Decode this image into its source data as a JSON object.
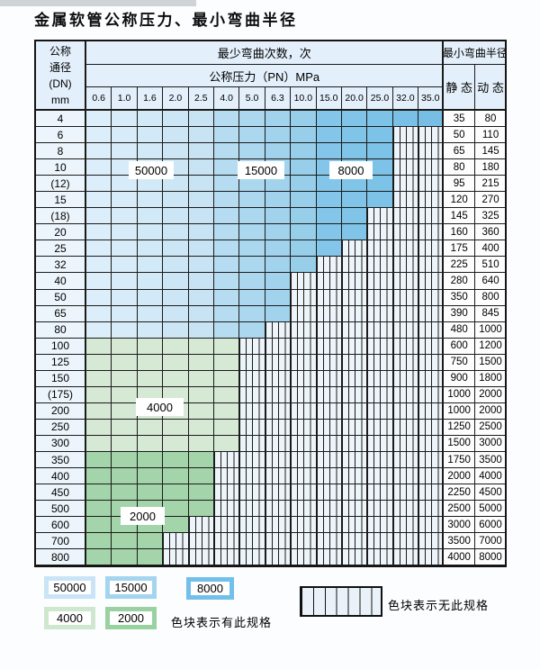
{
  "title": "金属软管公称压力、最小弯曲半径",
  "table": {
    "header": {
      "dn_label_lines": [
        "公称",
        "通径",
        "(DN)",
        "mm"
      ],
      "min_bend_cycles_title": "最少弯曲次数，次",
      "nominal_pressure_title": "公称压力（PN）MPa",
      "pressures": [
        "0.6",
        "1.0",
        "1.6",
        "2.0",
        "2.5",
        "4.0",
        "5.0",
        "6.3",
        "10.0",
        "15.0",
        "20.0",
        "25.0",
        "32.0",
        "35.0"
      ],
      "min_bend_radius_title": "最小弯曲半径",
      "static_label": "静 态",
      "dynamic_label": "动 态"
    },
    "rows": [
      {
        "dn": "4",
        "max_pn": "35.0",
        "band": "blue",
        "static": "35",
        "dynamic": "80"
      },
      {
        "dn": "6",
        "max_pn": "25.0",
        "band": "blue",
        "static": "50",
        "dynamic": "110"
      },
      {
        "dn": "8",
        "max_pn": "25.0",
        "band": "blue",
        "static": "65",
        "dynamic": "145"
      },
      {
        "dn": "10",
        "max_pn": "25.0",
        "band": "blue",
        "static": "80",
        "dynamic": "180"
      },
      {
        "dn": "(12)",
        "max_pn": "25.0",
        "band": "blue",
        "static": "95",
        "dynamic": "215"
      },
      {
        "dn": "15",
        "max_pn": "25.0",
        "band": "blue",
        "static": "120",
        "dynamic": "270"
      },
      {
        "dn": "(18)",
        "max_pn": "20.0",
        "band": "blue",
        "static": "145",
        "dynamic": "325"
      },
      {
        "dn": "20",
        "max_pn": "20.0",
        "band": "blue",
        "static": "160",
        "dynamic": "360"
      },
      {
        "dn": "25",
        "max_pn": "15.0",
        "band": "blue",
        "static": "175",
        "dynamic": "400"
      },
      {
        "dn": "32",
        "max_pn": "10.0",
        "band": "blue",
        "static": "225",
        "dynamic": "510"
      },
      {
        "dn": "40",
        "max_pn": "6.3",
        "band": "blue",
        "static": "280",
        "dynamic": "640"
      },
      {
        "dn": "50",
        "max_pn": "6.3",
        "band": "blue",
        "static": "350",
        "dynamic": "800"
      },
      {
        "dn": "65",
        "max_pn": "6.3",
        "band": "blue",
        "static": "390",
        "dynamic": "845"
      },
      {
        "dn": "80",
        "max_pn": "5.0",
        "band": "blue",
        "static": "480",
        "dynamic": "1000"
      },
      {
        "dn": "100",
        "max_pn": "4.0",
        "band": "4000",
        "static": "600",
        "dynamic": "1200"
      },
      {
        "dn": "125",
        "max_pn": "4.0",
        "band": "4000",
        "static": "750",
        "dynamic": "1500"
      },
      {
        "dn": "150",
        "max_pn": "4.0",
        "band": "4000",
        "static": "900",
        "dynamic": "1800"
      },
      {
        "dn": "(175)",
        "max_pn": "4.0",
        "band": "4000",
        "static": "1000",
        "dynamic": "2000"
      },
      {
        "dn": "200",
        "max_pn": "4.0",
        "band": "4000",
        "static": "1000",
        "dynamic": "2000"
      },
      {
        "dn": "250",
        "max_pn": "4.0",
        "band": "4000",
        "static": "1250",
        "dynamic": "2500"
      },
      {
        "dn": "300",
        "max_pn": "4.0",
        "band": "4000",
        "static": "1500",
        "dynamic": "3000"
      },
      {
        "dn": "350",
        "max_pn": "2.5",
        "band": "2000",
        "static": "1750",
        "dynamic": "3500"
      },
      {
        "dn": "400",
        "max_pn": "2.5",
        "band": "2000",
        "static": "2000",
        "dynamic": "4000"
      },
      {
        "dn": "450",
        "max_pn": "2.5",
        "band": "2000",
        "static": "2250",
        "dynamic": "4500"
      },
      {
        "dn": "500",
        "max_pn": "2.5",
        "band": "2000",
        "static": "2500",
        "dynamic": "5000"
      },
      {
        "dn": "600",
        "max_pn": "2.0",
        "band": "2000",
        "static": "3000",
        "dynamic": "6000"
      },
      {
        "dn": "700",
        "max_pn": "1.6",
        "band": "2000",
        "static": "3500",
        "dynamic": "7000"
      },
      {
        "dn": "800",
        "max_pn": "1.6",
        "band": "2000",
        "static": "4000",
        "dynamic": "8000"
      }
    ],
    "bend_cycle_labels": [
      {
        "text": "50000"
      },
      {
        "text": "15000"
      },
      {
        "text": "8000"
      },
      {
        "text": "4000"
      },
      {
        "text": "2000"
      }
    ]
  },
  "cycle_zones": {
    "z50000": {
      "cycles": "50000",
      "pressures": [
        "0.6",
        "1.0",
        "1.6",
        "2.0",
        "2.5"
      ],
      "rows": "DN 4–80",
      "color": "#cde6f5"
    },
    "z15000": {
      "cycles": "15000",
      "pressures": [
        "4.0",
        "5.0",
        "6.3",
        "10.0"
      ],
      "rows": "DN 4–80",
      "color": "#a1d3ed"
    },
    "z8000": {
      "cycles": "8000",
      "pressures": [
        "15.0",
        "20.0",
        "25.0",
        "32.0",
        "35.0"
      ],
      "rows": "DN 4–80",
      "color": "#7dc2e7"
    },
    "z4000": {
      "cycles": "4000",
      "rows": "DN 100–300",
      "color": "#d6e9d5"
    },
    "z2000": {
      "cycles": "2000",
      "rows": "DN 350–800",
      "color": "#a4d4a9"
    }
  },
  "palette": {
    "blue_columns": [
      "#dceef9",
      "#d7ebf8",
      "#d2e9f7",
      "#cde6f5",
      "#c7e3f4",
      "#b5dcf1",
      "#abd7ef",
      "#a1d3ed",
      "#97cfeb",
      "#84c6e9",
      "#80c4e8",
      "#7dc2e7",
      "#7ac0e6",
      "#77bee5"
    ],
    "green_4000": "#d6e9d5",
    "green_2000": "#a4d4a9",
    "stripe_fill": "#edf4fa",
    "grid_border": "#1b1b1b",
    "header_bg": "#e3effa",
    "dn_col_bg": "#ecf5fb"
  },
  "legend": {
    "swatches": [
      {
        "value": "50000",
        "color": "#c9e4f6"
      },
      {
        "value": "15000",
        "color": "#a3d5f0"
      },
      {
        "value": "8000",
        "color": "#72c0ea"
      },
      {
        "value": "4000",
        "color": "#cfe7cf"
      },
      {
        "value": "2000",
        "color": "#99d1a1"
      }
    ],
    "has_spec_text": "色块表示有此规格",
    "no_spec_text": "色块表示无此规格"
  }
}
